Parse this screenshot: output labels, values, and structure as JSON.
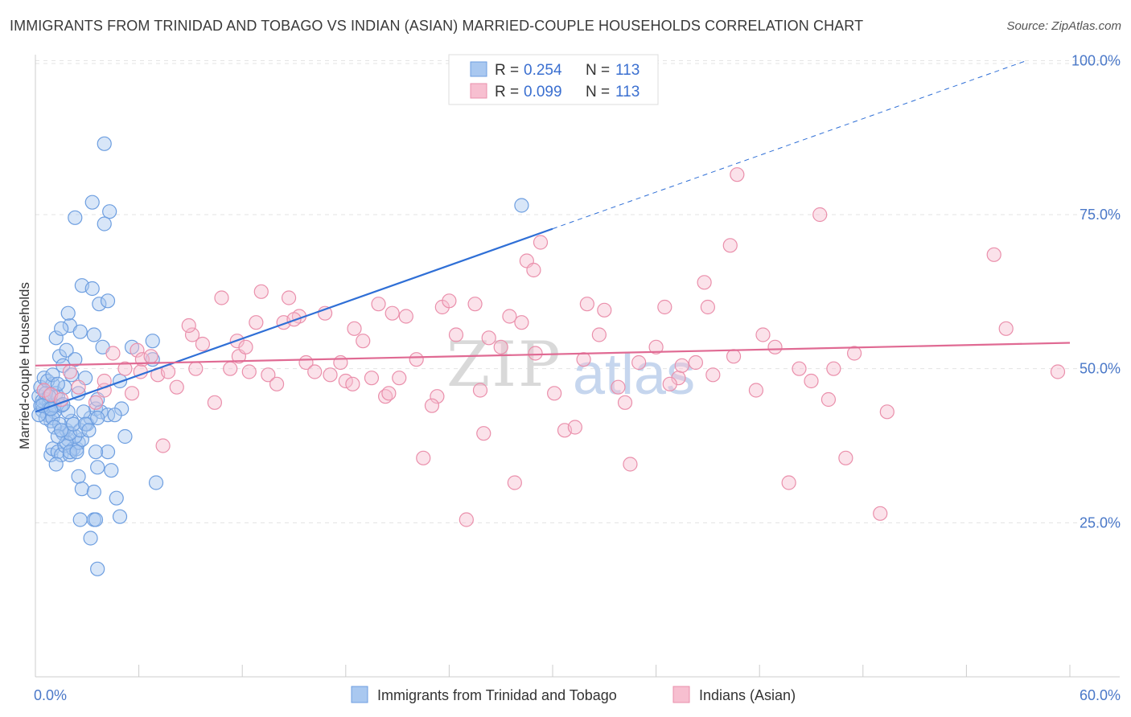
{
  "title": "IMMIGRANTS FROM TRINIDAD AND TOBAGO VS INDIAN (ASIAN) MARRIED-COUPLE HOUSEHOLDS CORRELATION CHART",
  "source": "Source: ZipAtlas.com",
  "watermark": {
    "zip": "ZIP",
    "atlas": "atlas"
  },
  "legend_top": {
    "rows": [
      {
        "r_label": "R =",
        "r_value": "0.254",
        "n_label": "N =",
        "n_value": "113",
        "color": "#a9c8f0",
        "stroke": "#6d9ee0"
      },
      {
        "r_label": "R =",
        "r_value": "0.099",
        "n_label": "N =",
        "n_value": "113",
        "color": "#f7bfd0",
        "stroke": "#ea8fab"
      }
    ]
  },
  "chart_data": {
    "type": "scatter",
    "xlabel": "",
    "ylabel": "Married-couple Households",
    "xlim": [
      0,
      60
    ],
    "ylim": [
      0,
      102
    ],
    "x_tick_labels": [
      "0.0%",
      "60.0%"
    ],
    "y_tick_labels": [
      "25.0%",
      "50.0%",
      "75.0%",
      "100.0%"
    ],
    "y_ticks": [
      25,
      50,
      75,
      100
    ],
    "grid": true,
    "legend_position": "top-center and bottom",
    "series": [
      {
        "name": "Immigrants from Trinidad and Tobago",
        "color": "#6d9ee0",
        "fill": "#a9c8f0",
        "trend": {
          "x0": 0,
          "y0": 43.0,
          "x1": 30,
          "y1": 72.7,
          "dashed_to_x": 57.5,
          "dashed_to_y": 100.0,
          "color": "#2f6fd6"
        },
        "points": [
          [
            0.2,
            45.5
          ],
          [
            0.3,
            44.0
          ],
          [
            0.4,
            43.2
          ],
          [
            0.5,
            46.5
          ],
          [
            0.6,
            45.0
          ],
          [
            0.7,
            42.5
          ],
          [
            0.3,
            47.0
          ],
          [
            0.8,
            44.5
          ],
          [
            0.9,
            41.5
          ],
          [
            0.5,
            48.5
          ],
          [
            1.0,
            47.5
          ],
          [
            1.1,
            43.0
          ],
          [
            0.6,
            42.0
          ],
          [
            0.4,
            44.8
          ],
          [
            1.2,
            46.0
          ],
          [
            0.7,
            48.0
          ],
          [
            1.3,
            45.5
          ],
          [
            0.8,
            43.5
          ],
          [
            1.5,
            44.0
          ],
          [
            1.0,
            42.0
          ],
          [
            1.4,
            52.0
          ],
          [
            1.6,
            50.5
          ],
          [
            1.2,
            55.0
          ],
          [
            1.8,
            53.0
          ],
          [
            2.0,
            57.0
          ],
          [
            1.9,
            59.0
          ],
          [
            1.5,
            56.5
          ],
          [
            2.1,
            49.0
          ],
          [
            2.3,
            51.5
          ],
          [
            1.7,
            47.0
          ],
          [
            0.9,
            36.0
          ],
          [
            1.0,
            37.0
          ],
          [
            1.3,
            36.5
          ],
          [
            1.5,
            36.0
          ],
          [
            1.2,
            34.5
          ],
          [
            1.7,
            37.5
          ],
          [
            1.9,
            38.5
          ],
          [
            2.0,
            36.0
          ],
          [
            2.2,
            37.0
          ],
          [
            1.6,
            39.5
          ],
          [
            2.4,
            37.0
          ],
          [
            1.8,
            40.0
          ],
          [
            2.1,
            41.5
          ],
          [
            1.4,
            41.0
          ],
          [
            1.1,
            40.5
          ],
          [
            2.5,
            38.0
          ],
          [
            2.7,
            38.5
          ],
          [
            2.3,
            39.0
          ],
          [
            1.8,
            38.0
          ],
          [
            2.0,
            39.5
          ],
          [
            2.6,
            40.0
          ],
          [
            3.0,
            41.0
          ],
          [
            3.2,
            42.0
          ],
          [
            3.5,
            43.5
          ],
          [
            3.8,
            43.0
          ],
          [
            4.2,
            42.5
          ],
          [
            3.6,
            42.0
          ],
          [
            2.9,
            48.5
          ],
          [
            3.4,
            55.5
          ],
          [
            2.7,
            63.5
          ],
          [
            3.3,
            63.0
          ],
          [
            3.7,
            60.5
          ],
          [
            4.2,
            61.0
          ],
          [
            3.3,
            77.0
          ],
          [
            4.3,
            75.5
          ],
          [
            4.0,
            73.5
          ],
          [
            2.3,
            74.5
          ],
          [
            4.0,
            86.5
          ],
          [
            2.5,
            32.5
          ],
          [
            2.7,
            30.5
          ],
          [
            3.4,
            30.0
          ],
          [
            3.6,
            34.0
          ],
          [
            4.4,
            33.5
          ],
          [
            4.7,
            29.0
          ],
          [
            4.9,
            26.0
          ],
          [
            3.4,
            25.5
          ],
          [
            3.5,
            25.5
          ],
          [
            2.6,
            25.5
          ],
          [
            3.2,
            22.5
          ],
          [
            3.6,
            17.5
          ],
          [
            4.2,
            36.5
          ],
          [
            5.2,
            39.0
          ],
          [
            5.0,
            43.5
          ],
          [
            4.6,
            42.5
          ],
          [
            3.9,
            53.5
          ],
          [
            5.6,
            53.5
          ],
          [
            6.8,
            54.5
          ],
          [
            6.8,
            51.5
          ],
          [
            7.0,
            31.5
          ],
          [
            3.5,
            36.5
          ],
          [
            4.9,
            48.0
          ],
          [
            2.2,
            41.0
          ],
          [
            2.8,
            43.0
          ],
          [
            3.6,
            45.0
          ],
          [
            1.1,
            44.0
          ],
          [
            0.6,
            46.0
          ],
          [
            0.2,
            42.5
          ],
          [
            1.3,
            39.0
          ],
          [
            2.0,
            36.5
          ],
          [
            2.4,
            36.5
          ],
          [
            2.9,
            41.0
          ],
          [
            3.1,
            40.0
          ],
          [
            1.5,
            40.0
          ],
          [
            0.8,
            45.5
          ],
          [
            1.9,
            43.0
          ],
          [
            2.5,
            46.0
          ],
          [
            1.0,
            49.0
          ],
          [
            2.6,
            56.0
          ],
          [
            1.3,
            47.5
          ],
          [
            28.2,
            76.5
          ],
          [
            0.4,
            44.0
          ],
          [
            0.9,
            43.5
          ],
          [
            1.6,
            44.2
          ]
        ]
      },
      {
        "name": "Indians (Asian)",
        "color": "#ea8fab",
        "fill": "#f7bfd0",
        "trend": {
          "x0": 0,
          "y0": 50.5,
          "x1": 60,
          "y1": 54.2,
          "color": "#e06a93"
        },
        "points": [
          [
            0.5,
            46.5
          ],
          [
            0.9,
            45.8
          ],
          [
            1.5,
            45.0
          ],
          [
            2.0,
            49.5
          ],
          [
            2.5,
            47.0
          ],
          [
            3.5,
            44.5
          ],
          [
            4.0,
            46.5
          ],
          [
            4.5,
            52.5
          ],
          [
            5.2,
            50.0
          ],
          [
            5.6,
            46.0
          ],
          [
            5.9,
            53.0
          ],
          [
            6.2,
            51.5
          ],
          [
            6.7,
            52.0
          ],
          [
            7.1,
            49.0
          ],
          [
            7.7,
            49.5
          ],
          [
            8.2,
            47.0
          ],
          [
            9.3,
            50.0
          ],
          [
            9.1,
            55.5
          ],
          [
            9.7,
            54.0
          ],
          [
            10.4,
            44.5
          ],
          [
            10.8,
            61.5
          ],
          [
            11.3,
            50.0
          ],
          [
            11.7,
            54.5
          ],
          [
            11.8,
            52.0
          ],
          [
            12.2,
            53.5
          ],
          [
            12.8,
            57.5
          ],
          [
            13.1,
            62.5
          ],
          [
            13.5,
            49.0
          ],
          [
            14.0,
            47.5
          ],
          [
            14.4,
            57.5
          ],
          [
            14.7,
            61.5
          ],
          [
            15.3,
            58.5
          ],
          [
            15.7,
            51.0
          ],
          [
            16.2,
            49.5
          ],
          [
            16.8,
            59.0
          ],
          [
            17.1,
            49.0
          ],
          [
            17.7,
            51.0
          ],
          [
            18.0,
            48.0
          ],
          [
            18.5,
            56.5
          ],
          [
            19.0,
            54.5
          ],
          [
            19.5,
            48.5
          ],
          [
            19.9,
            60.5
          ],
          [
            20.3,
            45.5
          ],
          [
            20.7,
            59.0
          ],
          [
            21.1,
            48.5
          ],
          [
            21.5,
            58.5
          ],
          [
            22.1,
            51.5
          ],
          [
            22.5,
            35.5
          ],
          [
            23.3,
            45.5
          ],
          [
            23.6,
            60.0
          ],
          [
            24.0,
            61.0
          ],
          [
            24.4,
            55.5
          ],
          [
            25.0,
            25.5
          ],
          [
            25.5,
            60.5
          ],
          [
            25.8,
            46.5
          ],
          [
            26.0,
            39.5
          ],
          [
            27.0,
            53.5
          ],
          [
            27.5,
            58.5
          ],
          [
            27.8,
            31.5
          ],
          [
            28.2,
            57.5
          ],
          [
            28.5,
            67.5
          ],
          [
            28.9,
            66.0
          ],
          [
            29.3,
            70.5
          ],
          [
            30.1,
            46.0
          ],
          [
            30.7,
            40.0
          ],
          [
            31.3,
            40.5
          ],
          [
            32.0,
            60.5
          ],
          [
            32.7,
            55.5
          ],
          [
            33.0,
            59.5
          ],
          [
            34.2,
            44.5
          ],
          [
            34.5,
            34.5
          ],
          [
            35.0,
            51.0
          ],
          [
            36.0,
            53.5
          ],
          [
            36.5,
            60.0
          ],
          [
            37.3,
            48.5
          ],
          [
            37.5,
            50.5
          ],
          [
            38.3,
            51.0
          ],
          [
            38.8,
            64.0
          ],
          [
            39.0,
            60.0
          ],
          [
            40.5,
            52.0
          ],
          [
            40.3,
            70.0
          ],
          [
            40.7,
            81.5
          ],
          [
            41.8,
            46.5
          ],
          [
            42.2,
            55.5
          ],
          [
            42.9,
            53.5
          ],
          [
            43.7,
            31.5
          ],
          [
            45.0,
            48.0
          ],
          [
            45.5,
            75.0
          ],
          [
            46.0,
            45.0
          ],
          [
            46.3,
            50.0
          ],
          [
            47.0,
            35.5
          ],
          [
            47.5,
            52.5
          ],
          [
            49.0,
            26.5
          ],
          [
            49.4,
            43.0
          ],
          [
            55.6,
            68.5
          ],
          [
            56.3,
            56.5
          ],
          [
            59.3,
            49.5
          ],
          [
            7.4,
            37.5
          ],
          [
            4.0,
            48.0
          ],
          [
            6.1,
            49.5
          ],
          [
            8.9,
            57.0
          ],
          [
            12.4,
            49.5
          ],
          [
            15.0,
            58.0
          ],
          [
            18.4,
            47.5
          ],
          [
            20.5,
            46.0
          ],
          [
            23.0,
            44.0
          ],
          [
            26.3,
            55.0
          ],
          [
            29.0,
            52.5
          ],
          [
            33.8,
            47.0
          ],
          [
            36.8,
            47.5
          ],
          [
            39.3,
            49.0
          ],
          [
            44.3,
            50.0
          ],
          [
            31.8,
            51.5
          ]
        ]
      }
    ]
  },
  "legend_bottom": [
    {
      "label": "Immigrants from Trinidad and Tobago",
      "color": "#a9c8f0",
      "stroke": "#6d9ee0"
    },
    {
      "label": "Indians (Asian)",
      "color": "#f7bfd0",
      "stroke": "#ea8fab"
    }
  ]
}
